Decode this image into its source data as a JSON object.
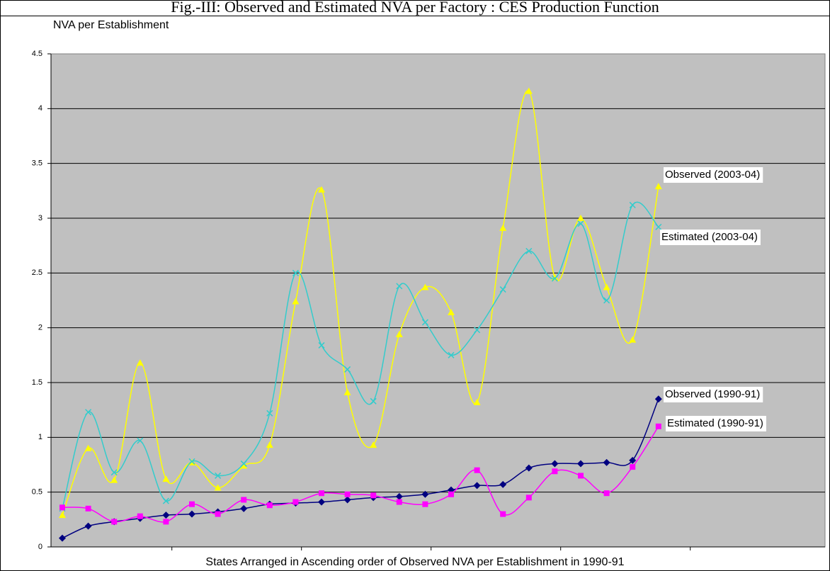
{
  "chart_data": {
    "type": "line",
    "title": "Fig.-III: Observed and Estimated NVA per Factory : CES Production Function",
    "y_label": "NVA  per Establishment",
    "x_label": "States Arranged in Ascending order of Observed NVA per Establishment in 1990-91",
    "categories": [
      null,
      null,
      null,
      null,
      null,
      null,
      null,
      null,
      null,
      null,
      null,
      null,
      null,
      null,
      null,
      null,
      null,
      null,
      null,
      null,
      null,
      null,
      null,
      null
    ],
    "series": [
      {
        "name": "Observed (2003-04)",
        "color": "#ffff00",
        "marker": "triangle",
        "values": [
          0.29,
          0.9,
          0.61,
          1.68,
          0.62,
          0.77,
          0.54,
          0.74,
          0.93,
          2.24,
          3.26,
          1.41,
          0.93,
          1.94,
          2.37,
          2.14,
          1.32,
          2.91,
          4.16,
          2.46,
          3.0,
          2.37,
          1.89,
          3.29
        ]
      },
      {
        "name": "Estimated (2003-04)",
        "color": "#33cccc",
        "marker": "x",
        "values": [
          0.35,
          1.23,
          0.68,
          0.97,
          0.42,
          0.78,
          0.65,
          0.76,
          1.22,
          2.5,
          1.84,
          1.62,
          1.33,
          2.38,
          2.05,
          1.75,
          1.98,
          2.35,
          2.7,
          2.45,
          2.95,
          2.25,
          3.12,
          2.92
        ]
      },
      {
        "name": "Observed (1990-91)",
        "color": "#000080",
        "marker": "diamond",
        "values": [
          0.08,
          0.19,
          0.23,
          0.26,
          0.29,
          0.3,
          0.32,
          0.35,
          0.39,
          0.4,
          0.41,
          0.43,
          0.45,
          0.46,
          0.48,
          0.52,
          0.56,
          0.57,
          0.72,
          0.76,
          0.76,
          0.77,
          0.79,
          1.35
        ]
      },
      {
        "name": "Estimated (1990-91)",
        "color": "#ff00ff",
        "marker": "square",
        "values": [
          0.36,
          0.35,
          0.23,
          0.28,
          0.23,
          0.39,
          0.3,
          0.43,
          0.38,
          0.41,
          0.49,
          0.48,
          0.47,
          0.41,
          0.39,
          0.48,
          0.7,
          0.3,
          0.45,
          0.69,
          0.65,
          0.49,
          0.73,
          1.1
        ]
      }
    ],
    "ylim": [
      0,
      4.5
    ],
    "yticks": [
      0,
      0.5,
      1,
      1.5,
      2,
      2.5,
      3,
      3.5,
      4,
      4.5
    ],
    "grid": true
  }
}
